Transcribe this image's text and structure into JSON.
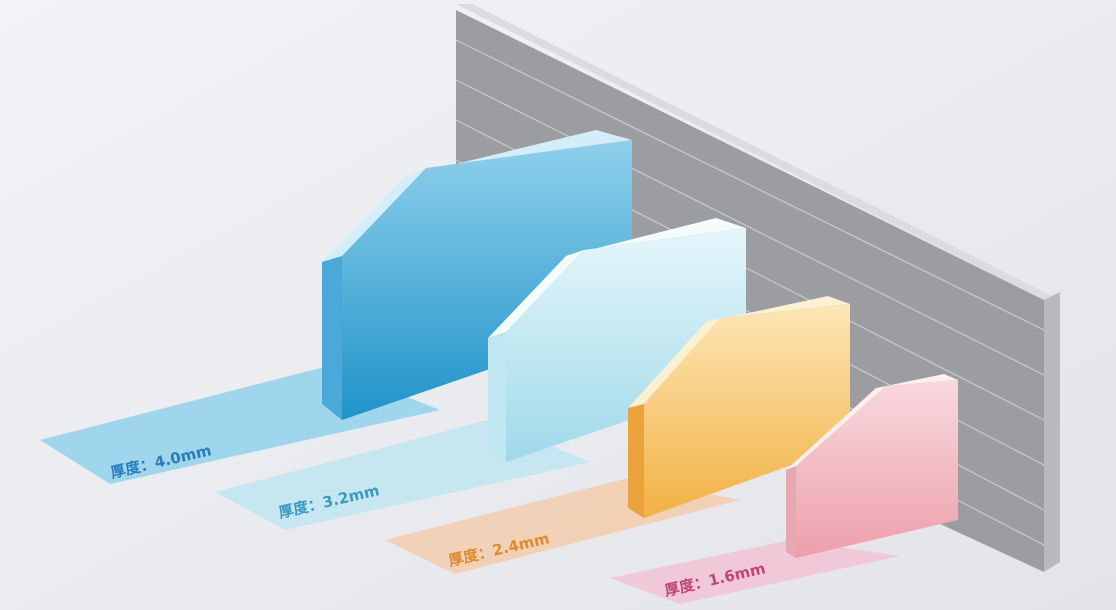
{
  "panels": [
    {
      "id": "panel-4-0",
      "label": "厚度：4.0mm",
      "thickness_mm": 4.0,
      "label_color": "#2a7fb8",
      "colors": {
        "front_top": "#8fd0ec",
        "front_bottom": "#1f93c9",
        "top": "#d3eefa",
        "side": "#4aa9d8",
        "strip": "#86cdec"
      }
    },
    {
      "id": "panel-3-2",
      "label": "厚度：3.2mm",
      "thickness_mm": 3.2,
      "label_color": "#3a9cc0",
      "colors": {
        "front_top": "#e6f6fb",
        "front_bottom": "#9fd9ea",
        "top": "#f3fbfd",
        "side": "#bfe6f1",
        "strip": "#bde6f2"
      }
    },
    {
      "id": "panel-2-4",
      "label": "厚度：2.4mm",
      "thickness_mm": 2.4,
      "label_color": "#e08a2e",
      "colors": {
        "front_top": "#fde6b8",
        "front_bottom": "#f2b143",
        "top": "#fdf0d0",
        "side": "#e9a33a",
        "strip": "#f4c8a4"
      }
    },
    {
      "id": "panel-1-6",
      "label": "厚度：1.6mm",
      "thickness_mm": 1.6,
      "label_color": "#c2467a",
      "colors": {
        "front_top": "#f8d9dd",
        "front_bottom": "#ec9fac",
        "top": "#fdeef0",
        "side": "#e8a8b2",
        "strip": "#f3c1d2"
      }
    }
  ],
  "wall": {
    "front": "#9b9da1",
    "top": "#dcdcde",
    "side": "#b9babd",
    "line": "#c9cacd"
  }
}
